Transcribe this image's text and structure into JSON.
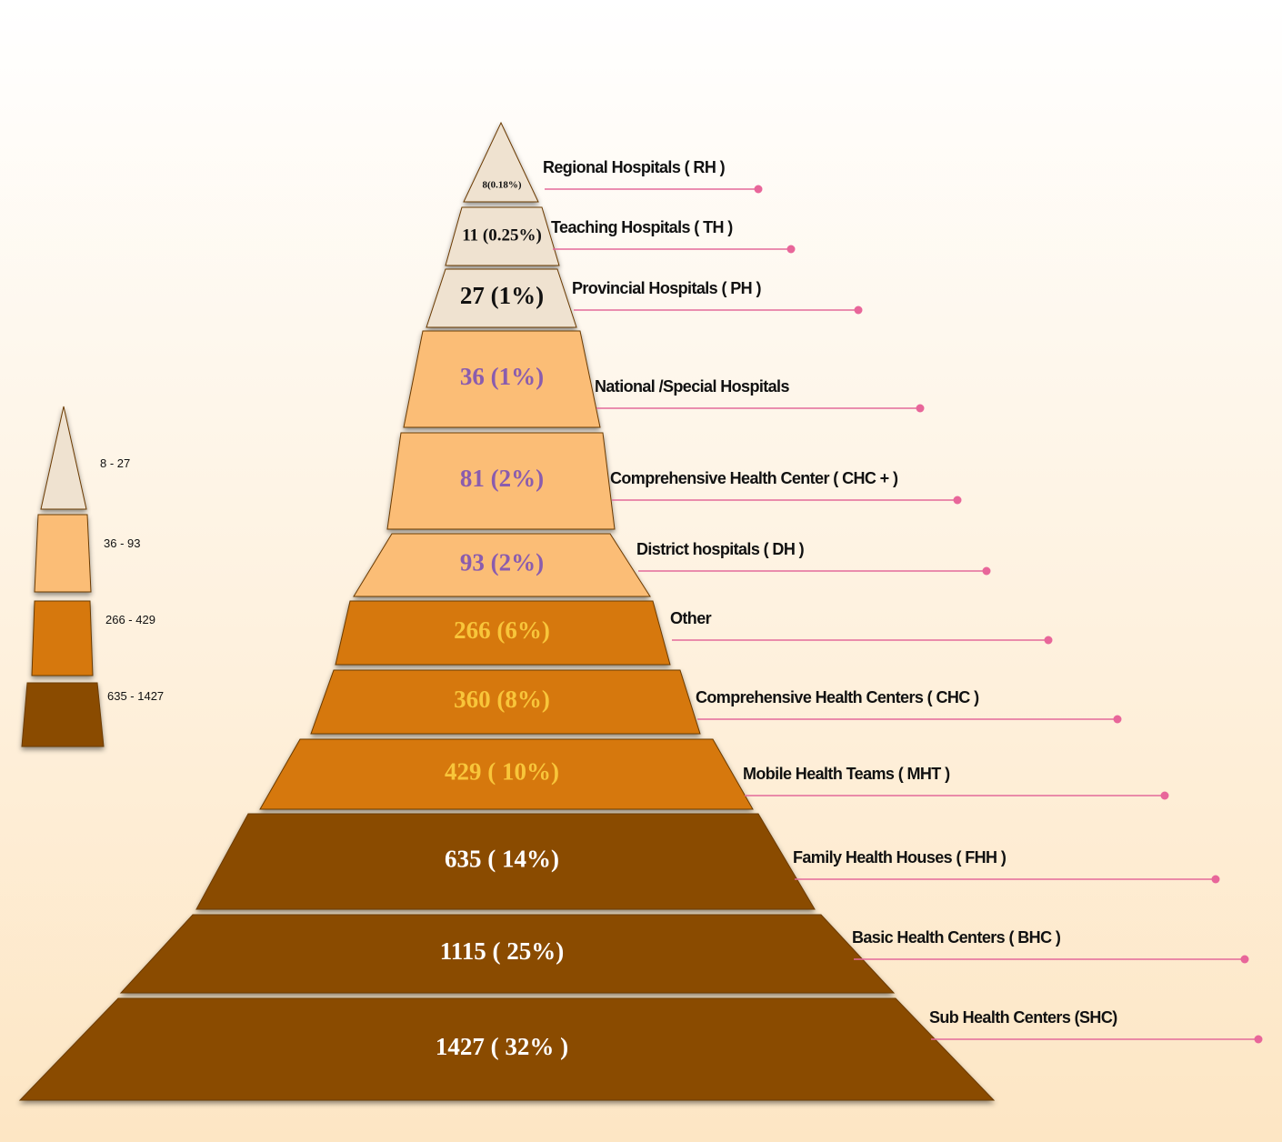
{
  "levels": [
    {
      "value_text": "8(0.18%)",
      "label": "Regional Hospitals ( RH )"
    },
    {
      "value_text": "11 (0.25%)",
      "label": "Teaching Hospitals ( TH )"
    },
    {
      "value_text": "27 (1%)",
      "label": "Provincial Hospitals ( PH )"
    },
    {
      "value_text": "36 (1%)",
      "label": "National /Special Hospitals"
    },
    {
      "value_text": "81 (2%)",
      "label": "Comprehensive Health Center ( CHC + )"
    },
    {
      "value_text": "93 (2%)",
      "label": "District hospitals ( DH )"
    },
    {
      "value_text": "266 (6%)",
      "label": "Other"
    },
    {
      "value_text": "360 (8%)",
      "label": "Comprehensive Health Centers ( CHC )"
    },
    {
      "value_text": "429 ( 10%)",
      "label": "Mobile Health  Teams ( MHT )"
    },
    {
      "value_text": "635 ( 14%)",
      "label": "Family Health Houses ( FHH )"
    },
    {
      "value_text": "1115 ( 25%)",
      "label": "Basic Health Centers ( BHC )"
    },
    {
      "value_text": "1427 ( 32% )",
      "label": "Sub Health Centers (SHC)"
    }
  ],
  "legend": [
    "8 - 27",
    "36 - 93",
    "266 - 429",
    "635 - 1427"
  ]
}
